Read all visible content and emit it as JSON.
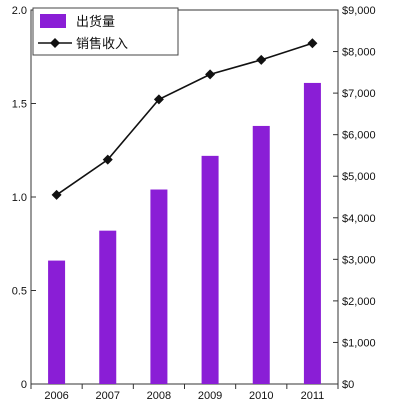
{
  "chart_data": {
    "type": "bar",
    "categories": [
      "2006",
      "2007",
      "2008",
      "2009",
      "2010",
      "2011"
    ],
    "series": [
      {
        "name": "出货量",
        "kind": "bar",
        "axis": "left",
        "color": "#8a1ed6",
        "values": [
          0.66,
          0.82,
          1.04,
          1.22,
          1.38,
          1.61
        ]
      },
      {
        "name": "销售收入",
        "kind": "line",
        "axis": "right",
        "color": "#111111",
        "marker": "diamond",
        "values": [
          4550,
          5400,
          6850,
          7450,
          7800,
          8200
        ]
      }
    ],
    "left_axis": {
      "ylim": [
        0,
        2.0
      ],
      "ticks": [
        0,
        0.5,
        1.0,
        1.5,
        2.0
      ],
      "tick_labels": [
        "0",
        "0.5",
        "1.0",
        "1.5",
        "2.0"
      ]
    },
    "right_axis": {
      "ylim": [
        0,
        9000
      ],
      "ticks": [
        0,
        1000,
        2000,
        3000,
        4000,
        5000,
        6000,
        7000,
        8000,
        9000
      ],
      "tick_labels": [
        "$0",
        "$1,000",
        "$2,000",
        "$3,000",
        "$4,000",
        "$5,000",
        "$6,000",
        "$7,000",
        "$8,000",
        "$9,000"
      ]
    },
    "legend": {
      "position": "top-left",
      "entries": [
        "出货量",
        "销售收入"
      ]
    },
    "grid": false,
    "title": "",
    "xlabel": "",
    "ylabel": ""
  }
}
